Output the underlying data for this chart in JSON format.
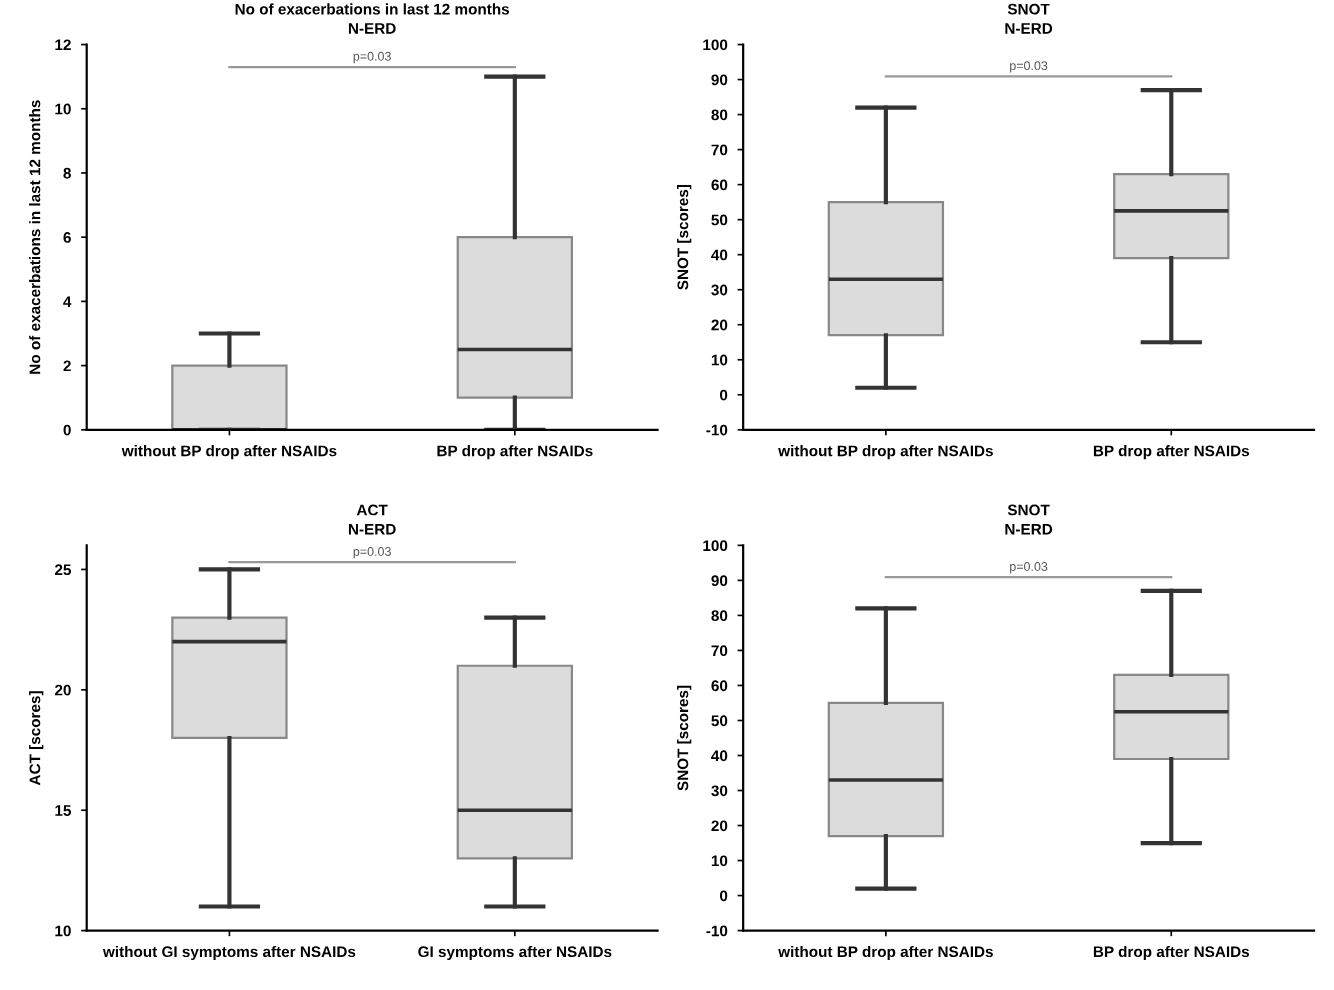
{
  "chart_data": [
    {
      "type": "box",
      "title": "No of exacerbations in last 12 months",
      "subtitle": "N-ERD",
      "ylabel": "No of exacerbations in last 12 months",
      "categories": [
        "without BP drop after NSAIDs",
        "BP drop after NSAIDs"
      ],
      "color": "#dcdcdc",
      "boxes": [
        {
          "low": 0,
          "q1": 0,
          "median": 0,
          "q3": 2,
          "high": 3
        },
        {
          "low": 0,
          "q1": 1,
          "median": 2.5,
          "q3": 6,
          "high": 11
        }
      ],
      "ylim": [
        0,
        12
      ],
      "yticks": [
        0,
        2,
        4,
        6,
        8,
        10,
        12
      ],
      "grid": false,
      "annotations": [
        "p=0.03"
      ]
    },
    {
      "type": "box",
      "title": "SNOT",
      "subtitle": "N-ERD",
      "ylabel": "SNOT [scores]",
      "categories": [
        "without BP drop after NSAIDs",
        "BP drop after NSAIDs"
      ],
      "color": "#dcdcdc",
      "boxes": [
        {
          "low": 2,
          "q1": 17,
          "median": 33,
          "q3": 55,
          "high": 82
        },
        {
          "low": 15,
          "q1": 39,
          "median": 52.5,
          "q3": 63,
          "high": 87
        }
      ],
      "ylim": [
        -10,
        100
      ],
      "yticks": [
        -10,
        0,
        10,
        20,
        30,
        40,
        50,
        60,
        70,
        80,
        90,
        100
      ],
      "grid": false,
      "annotations": [
        "p=0.03"
      ]
    },
    {
      "type": "box",
      "title": "ACT",
      "subtitle": "N-ERD",
      "ylabel": "ACT [scores]",
      "categories": [
        "without GI symptoms after NSAIDs",
        "GI symptoms after NSAIDs"
      ],
      "color": "#dcdcdc",
      "boxes": [
        {
          "low": 11,
          "q1": 18,
          "median": 22,
          "q3": 23,
          "high": 25
        },
        {
          "low": 11,
          "q1": 13,
          "median": 15,
          "q3": 21,
          "high": 23
        }
      ],
      "ylim": [
        10,
        26
      ],
      "yticks": [
        10,
        15,
        20,
        25
      ],
      "grid": false,
      "annotations": [
        "p=0.03"
      ]
    },
    {
      "type": "box",
      "title": "SNOT",
      "subtitle": "N-ERD",
      "ylabel": "SNOT [scores]",
      "categories": [
        "without BP drop after NSAIDs",
        "BP drop after NSAIDs"
      ],
      "color": "#dcdcdc",
      "boxes": [
        {
          "low": 2,
          "q1": 17,
          "median": 33,
          "q3": 55,
          "high": 82
        },
        {
          "low": 15,
          "q1": 39,
          "median": 52.5,
          "q3": 63,
          "high": 87
        }
      ],
      "ylim": [
        -10,
        100
      ],
      "yticks": [
        -10,
        0,
        10,
        20,
        30,
        40,
        50,
        60,
        70,
        80,
        90,
        100
      ],
      "grid": false,
      "annotations": [
        "p=0.03"
      ]
    }
  ]
}
